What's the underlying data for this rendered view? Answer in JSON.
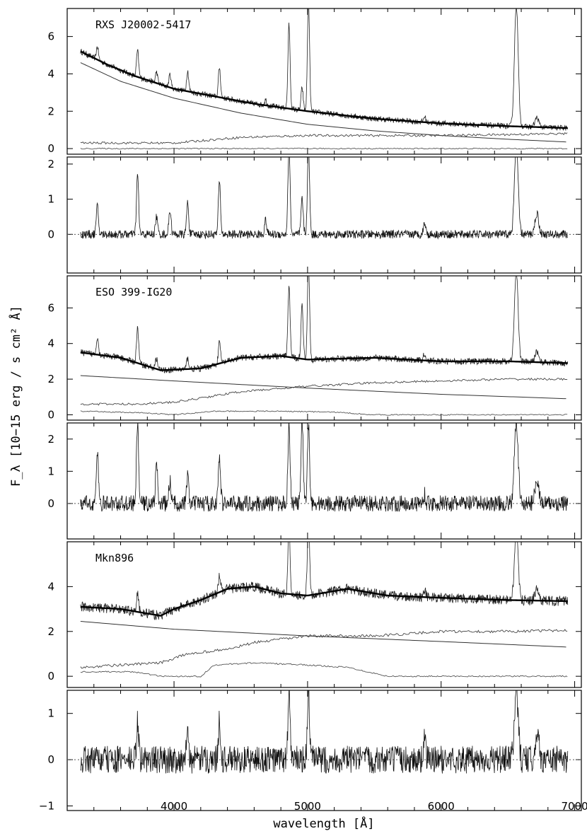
{
  "chart_data": {
    "type": "line",
    "xlabel": "wavelength [Å]",
    "ylabel": "F_λ [10−15 erg / s cm² Å]",
    "xlim": [
      3200,
      7050
    ],
    "x_ticks": [
      4000,
      5000,
      6000,
      7000
    ],
    "x_tick_labels": [
      "4000",
      "5000",
      "6000",
      "7000"
    ],
    "panels": [
      {
        "role": "spectrum_fit",
        "label": "RXS J20002-5417",
        "ylim": [
          -0.3,
          7.5
        ],
        "y_ticks": [
          0,
          2,
          4,
          6
        ],
        "y_tick_labels": [
          "0",
          "2",
          "4",
          "6"
        ],
        "continuum_points": [
          [
            3300,
            5.2
          ],
          [
            3500,
            4.5
          ],
          [
            3700,
            3.9
          ],
          [
            4000,
            3.2
          ],
          [
            4300,
            2.8
          ],
          [
            4600,
            2.4
          ],
          [
            5000,
            2.0
          ],
          [
            5500,
            1.6
          ],
          [
            6000,
            1.35
          ],
          [
            6500,
            1.2
          ],
          [
            6950,
            1.1
          ]
        ],
        "powerlaw_points": [
          [
            3300,
            4.6
          ],
          [
            3600,
            3.6
          ],
          [
            4000,
            2.7
          ],
          [
            4500,
            1.9
          ],
          [
            5000,
            1.3
          ],
          [
            5500,
            0.95
          ],
          [
            6000,
            0.7
          ],
          [
            6500,
            0.5
          ],
          [
            6950,
            0.35
          ]
        ],
        "stellar_points": [
          [
            3300,
            0.3
          ],
          [
            4000,
            0.3
          ],
          [
            4500,
            0.6
          ],
          [
            5000,
            0.7
          ],
          [
            5500,
            0.7
          ],
          [
            6000,
            0.7
          ],
          [
            6950,
            0.8
          ]
        ],
        "agn_points": [
          [
            3300,
            0.0
          ],
          [
            6950,
            0.0
          ]
        ],
        "lines": [
          [
            3426,
            0.7
          ],
          [
            3727,
            1.4
          ],
          [
            3869,
            0.6
          ],
          [
            3970,
            0.7
          ],
          [
            4102,
            1.1
          ],
          [
            4340,
            1.6
          ],
          [
            4686,
            0.3
          ],
          [
            4861,
            4.5
          ],
          [
            4959,
            1.2
          ],
          [
            5007,
            6.0
          ],
          [
            5876,
            0.3
          ],
          [
            6563,
            6.5
          ],
          [
            6717,
            0.5
          ]
        ],
        "noise": 0.15
      },
      {
        "role": "residual",
        "label": "",
        "ylim": [
          -1.1,
          2.2
        ],
        "y_ticks": [
          0,
          1,
          2
        ],
        "y_tick_labels": [
          "0",
          "1",
          "2"
        ],
        "lines": [
          [
            3426,
            0.8
          ],
          [
            3727,
            1.7
          ],
          [
            3869,
            0.5
          ],
          [
            3970,
            0.7
          ],
          [
            4102,
            0.9
          ],
          [
            4340,
            1.5
          ],
          [
            4686,
            0.4
          ],
          [
            4861,
            2.5
          ],
          [
            4959,
            1.0
          ],
          [
            5007,
            2.5
          ],
          [
            5876,
            0.35
          ],
          [
            6563,
            2.5
          ],
          [
            6717,
            0.6
          ]
        ],
        "noise": 0.12
      },
      {
        "role": "spectrum_fit",
        "label": "ESO 399-IG20",
        "ylim": [
          -0.3,
          7.8
        ],
        "y_ticks": [
          0,
          2,
          4,
          6
        ],
        "y_tick_labels": [
          "0",
          "2",
          "4",
          "6"
        ],
        "continuum_points": [
          [
            3300,
            3.5
          ],
          [
            3600,
            3.2
          ],
          [
            3900,
            2.5
          ],
          [
            4200,
            2.6
          ],
          [
            4500,
            3.2
          ],
          [
            4800,
            3.3
          ],
          [
            5000,
            3.1
          ],
          [
            5500,
            3.2
          ],
          [
            6000,
            3.0
          ],
          [
            6500,
            3.0
          ],
          [
            6950,
            2.9
          ]
        ],
        "powerlaw_points": [
          [
            3300,
            2.2
          ],
          [
            4000,
            1.9
          ],
          [
            5000,
            1.5
          ],
          [
            6000,
            1.15
          ],
          [
            6950,
            0.9
          ]
        ],
        "stellar_points": [
          [
            3300,
            0.6
          ],
          [
            3700,
            0.6
          ],
          [
            4000,
            0.7
          ],
          [
            4500,
            1.3
          ],
          [
            5000,
            1.6
          ],
          [
            5500,
            1.8
          ],
          [
            6000,
            1.9
          ],
          [
            6500,
            2.0
          ],
          [
            6950,
            2.0
          ]
        ],
        "agn_points": [
          [
            3300,
            0.2
          ],
          [
            3800,
            0.1
          ],
          [
            4000,
            0.0
          ],
          [
            4300,
            0.2
          ],
          [
            4800,
            0.2
          ],
          [
            5200,
            0.15
          ],
          [
            5500,
            0.0
          ],
          [
            6950,
            0.0
          ]
        ],
        "lines": [
          [
            3426,
            1.0
          ],
          [
            3727,
            2.0
          ],
          [
            3869,
            0.6
          ],
          [
            4102,
            0.6
          ],
          [
            4340,
            1.2
          ],
          [
            4861,
            4.0
          ],
          [
            4959,
            3.0
          ],
          [
            5007,
            5.5
          ],
          [
            5876,
            0.4
          ],
          [
            6563,
            5.0
          ],
          [
            6717,
            0.6
          ]
        ],
        "noise": 0.18
      },
      {
        "role": "residual",
        "label": "",
        "ylim": [
          -1.1,
          2.5
        ],
        "y_ticks": [
          0,
          1,
          2
        ],
        "y_tick_labels": [
          "0",
          "1",
          "2"
        ],
        "lines": [
          [
            3426,
            1.5
          ],
          [
            3727,
            2.5
          ],
          [
            3869,
            1.2
          ],
          [
            3970,
            0.7
          ],
          [
            4102,
            0.8
          ],
          [
            4340,
            1.5
          ],
          [
            4861,
            2.5
          ],
          [
            4959,
            2.5
          ],
          [
            5007,
            2.5
          ],
          [
            5876,
            0.3
          ],
          [
            6563,
            2.5
          ],
          [
            6717,
            0.8
          ]
        ],
        "noise": 0.25
      },
      {
        "role": "spectrum_fit",
        "label": "Mkn896",
        "ylim": [
          -0.5,
          6.0
        ],
        "y_ticks": [
          0,
          2,
          4
        ],
        "y_tick_labels": [
          "0",
          "2",
          "4"
        ],
        "continuum_points": [
          [
            3300,
            3.1
          ],
          [
            3600,
            3.0
          ],
          [
            3900,
            2.7
          ],
          [
            4000,
            3.0
          ],
          [
            4200,
            3.4
          ],
          [
            4400,
            3.9
          ],
          [
            4600,
            4.0
          ],
          [
            4800,
            3.7
          ],
          [
            5000,
            3.6
          ],
          [
            5300,
            3.9
          ],
          [
            5600,
            3.6
          ],
          [
            6000,
            3.5
          ],
          [
            6500,
            3.4
          ],
          [
            6950,
            3.35
          ]
        ],
        "powerlaw_points": [
          [
            3300,
            2.45
          ],
          [
            4000,
            2.1
          ],
          [
            5000,
            1.8
          ],
          [
            6000,
            1.55
          ],
          [
            6950,
            1.3
          ]
        ],
        "stellar_points": [
          [
            3300,
            0.4
          ],
          [
            3600,
            0.5
          ],
          [
            3900,
            0.6
          ],
          [
            4100,
            1.0
          ],
          [
            4400,
            1.2
          ],
          [
            4600,
            1.5
          ],
          [
            5000,
            1.8
          ],
          [
            5500,
            1.8
          ],
          [
            6000,
            2.0
          ],
          [
            6500,
            2.0
          ],
          [
            6950,
            2.05
          ]
        ],
        "agn_points": [
          [
            3300,
            0.2
          ],
          [
            3700,
            0.2
          ],
          [
            3900,
            0.0
          ],
          [
            4200,
            0.0
          ],
          [
            4300,
            0.5
          ],
          [
            4600,
            0.6
          ],
          [
            5000,
            0.5
          ],
          [
            5300,
            0.4
          ],
          [
            5600,
            0.0
          ],
          [
            6950,
            0.0
          ]
        ],
        "lines": [
          [
            3727,
            0.8
          ],
          [
            4340,
            0.8
          ],
          [
            4861,
            3.0
          ],
          [
            5007,
            3.5
          ],
          [
            5876,
            0.4
          ],
          [
            6563,
            3.0
          ],
          [
            6717,
            0.5
          ]
        ],
        "noise": 0.22
      },
      {
        "role": "residual",
        "label": "",
        "ylim": [
          -1.1,
          1.5
        ],
        "y_ticks": [
          -1,
          0,
          1
        ],
        "y_tick_labels": [
          "−1",
          "0",
          "1"
        ],
        "lines": [
          [
            3727,
            0.8
          ],
          [
            4102,
            0.5
          ],
          [
            4340,
            0.9
          ],
          [
            4861,
            1.5
          ],
          [
            5007,
            1.5
          ],
          [
            5876,
            0.5
          ],
          [
            6563,
            1.5
          ],
          [
            6717,
            0.6
          ]
        ],
        "noise": 0.3
      }
    ]
  }
}
